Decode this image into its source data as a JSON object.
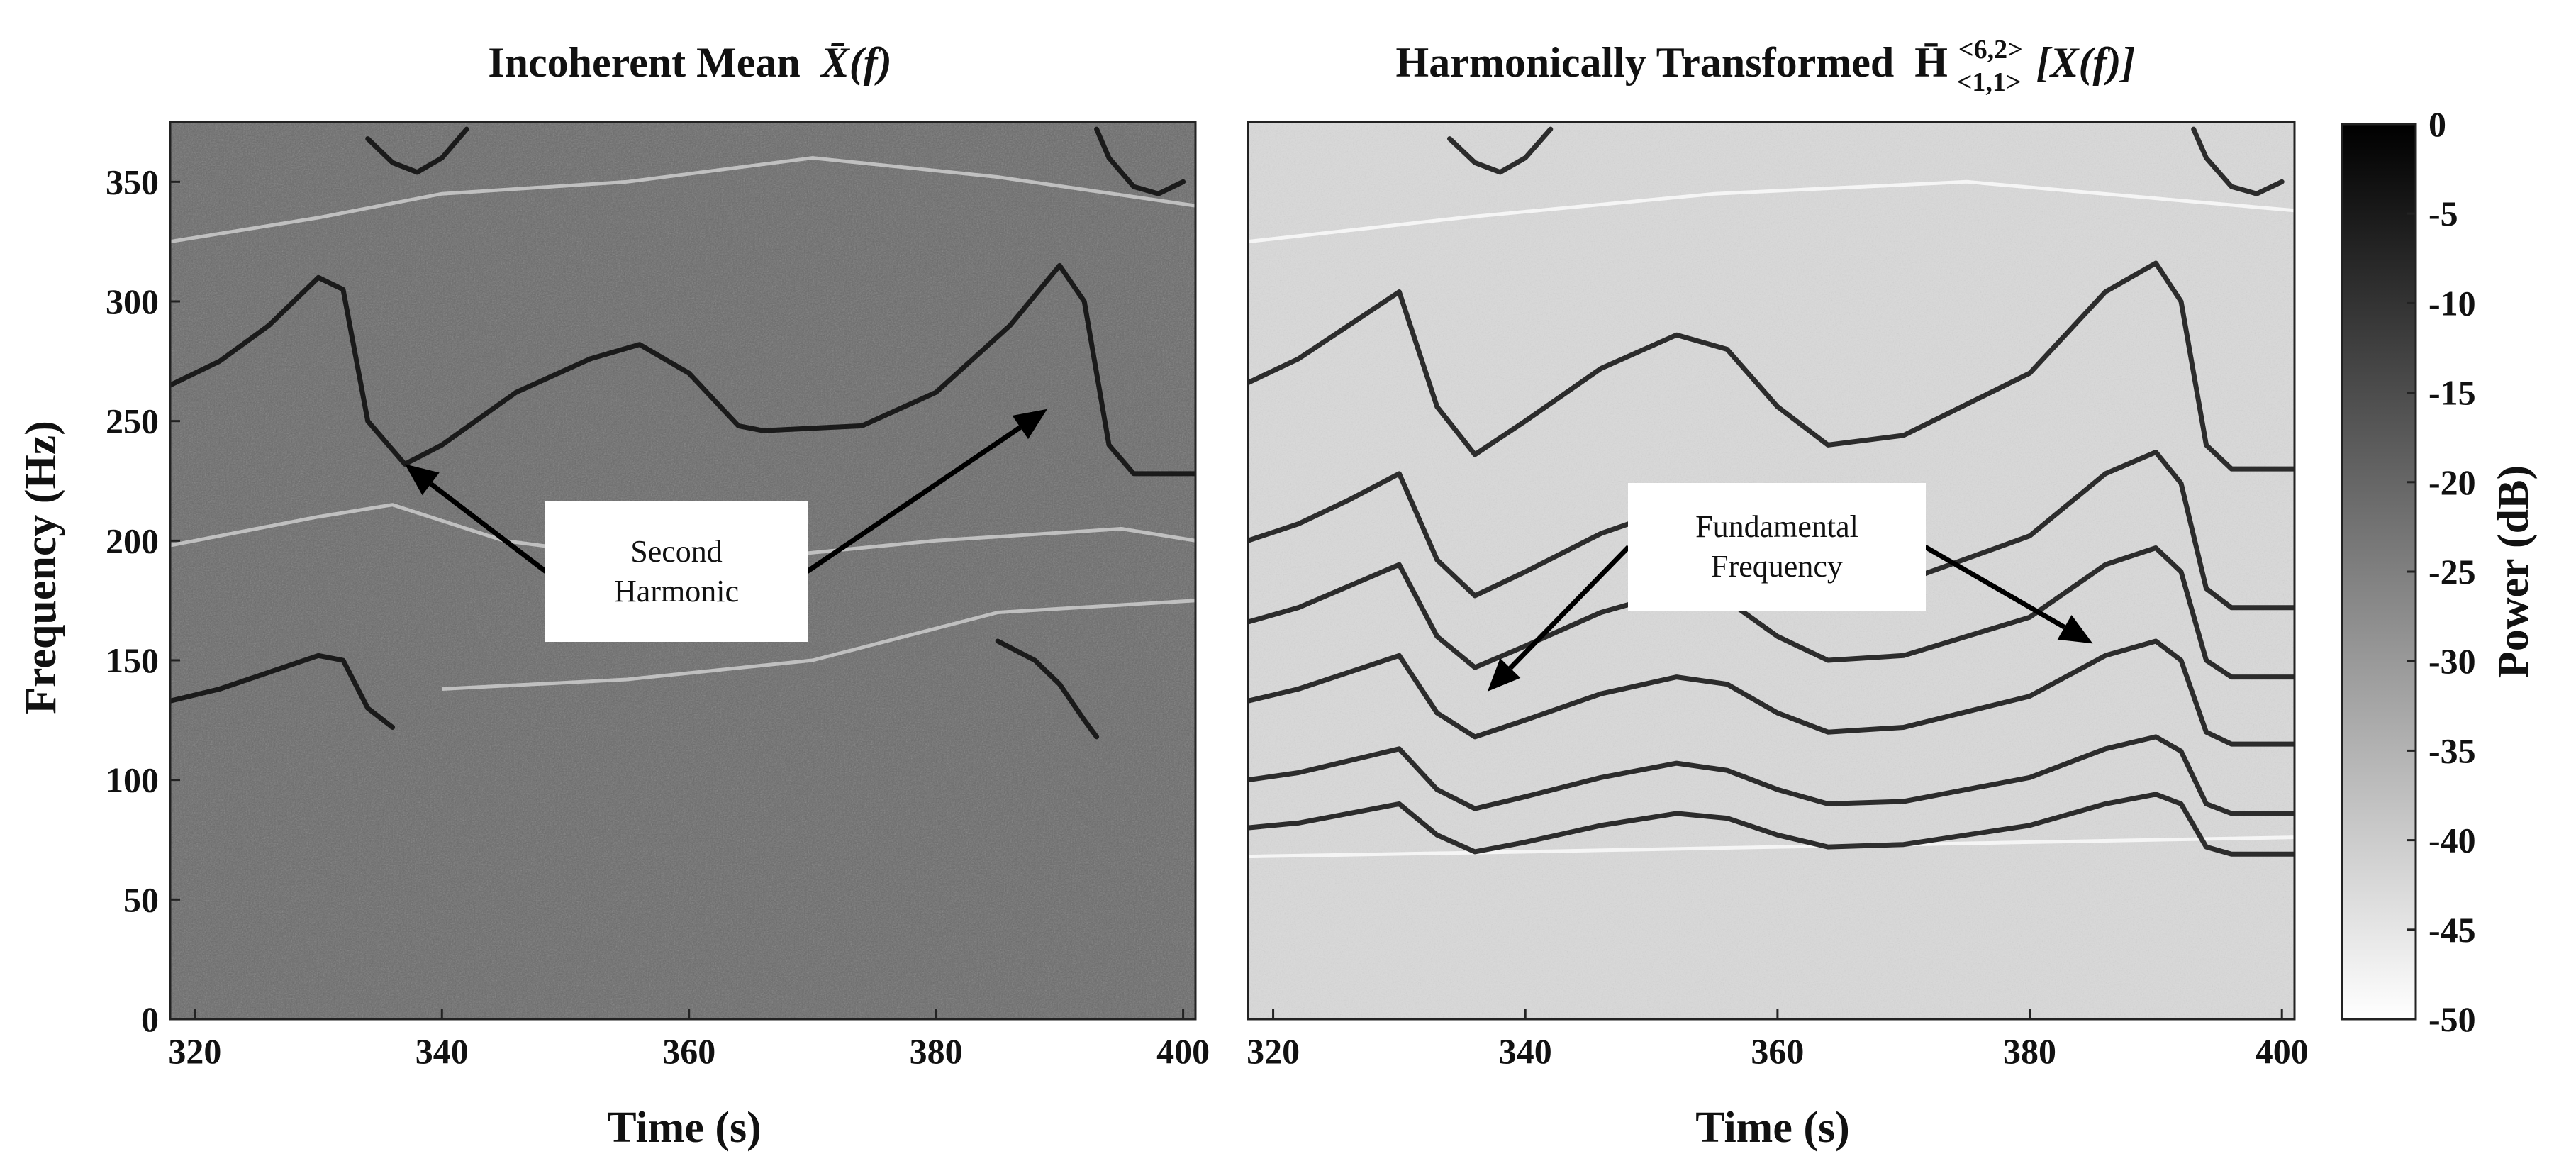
{
  "chart_data": [
    {
      "type": "heatmap",
      "title": "Incoherent Mean",
      "title_math": "X̄(f)",
      "xlabel": "Time (s)",
      "ylabel": "Frequency (Hz)",
      "xlim": [
        318,
        401
      ],
      "ylim": [
        0,
        375
      ],
      "xticks": [
        "320",
        "340",
        "360",
        "380",
        "400"
      ],
      "xtick_values": [
        320,
        340,
        360,
        380,
        400
      ],
      "yticks": [
        "0",
        "50",
        "100",
        "150",
        "200",
        "250",
        "300",
        "350"
      ],
      "ytick_values": [
        0,
        50,
        100,
        150,
        200,
        250,
        300,
        350
      ],
      "background": "#6a6a6a",
      "contours": [
        {
          "x": [
            318,
            322,
            326,
            330,
            332,
            334,
            337,
            340,
            346,
            352,
            356,
            360,
            364,
            366,
            370,
            374,
            380,
            386,
            390,
            392,
            394,
            396,
            401
          ],
          "y": [
            265,
            275,
            290,
            310,
            305,
            250,
            232,
            240,
            262,
            276,
            282,
            270,
            248,
            246,
            247,
            248,
            262,
            290,
            315,
            300,
            240,
            228,
            228
          ]
        },
        {
          "x": [
            318,
            322,
            326,
            330,
            332,
            334,
            336
          ],
          "y": [
            133,
            138,
            145,
            152,
            150,
            130,
            122
          ]
        },
        {
          "x": [
            385,
            388,
            390,
            392,
            393
          ],
          "y": [
            158,
            150,
            140,
            125,
            118
          ]
        },
        {
          "x": [
            334,
            336,
            338,
            340,
            342
          ],
          "y": [
            368,
            358,
            354,
            360,
            372
          ]
        },
        {
          "x": [
            393,
            394,
            396,
            398,
            400
          ],
          "y": [
            372,
            360,
            348,
            345,
            350
          ]
        }
      ],
      "light_contours": [
        {
          "x": [
            318,
            330,
            340,
            355,
            370,
            385,
            401
          ],
          "y": [
            325,
            335,
            345,
            350,
            360,
            352,
            340
          ]
        },
        {
          "x": [
            318,
            330,
            336,
            345,
            360,
            380,
            395,
            401
          ],
          "y": [
            198,
            210,
            215,
            200,
            190,
            200,
            205,
            200
          ]
        },
        {
          "x": [
            340,
            355,
            370,
            385,
            401
          ],
          "y": [
            138,
            142,
            150,
            170,
            175
          ]
        }
      ],
      "annotations": [
        {
          "lines": [
            "Second",
            "Harmonic"
          ],
          "targets": [
            {
              "x": 337,
              "y": 232
            },
            {
              "x": 389,
              "y": 255
            }
          ]
        }
      ]
    },
    {
      "type": "heatmap",
      "title": "Harmonically Transformed",
      "title_math": "H̄",
      "title_superscript": "<6,2>",
      "title_subscript": "<1,1>",
      "title_suffix": "[X(f)]",
      "xlabel": "Time (s)",
      "xlim": [
        318,
        401
      ],
      "ylim": [
        0,
        375
      ],
      "xticks": [
        "320",
        "340",
        "360",
        "380",
        "400"
      ],
      "xtick_values": [
        320,
        340,
        360,
        380,
        400
      ],
      "background": "#d9d9d9",
      "contours": [
        {
          "x": [
            318,
            322,
            326,
            330,
            333,
            336,
            340,
            346,
            352,
            356,
            360,
            364,
            370,
            380,
            386,
            390,
            392,
            394,
            396,
            401
          ],
          "y": [
            133,
            138,
            145,
            152,
            128,
            118,
            125,
            136,
            143,
            140,
            128,
            120,
            122,
            135,
            152,
            158,
            150,
            120,
            115,
            115
          ]
        },
        {
          "x": [
            318,
            322,
            326,
            330,
            333,
            336,
            340,
            346,
            352,
            356,
            360,
            364,
            370,
            380,
            386,
            390,
            392,
            394,
            396,
            401
          ],
          "y": [
            200,
            207,
            217,
            228,
            192,
            177,
            187,
            203,
            214,
            209,
            192,
            180,
            183,
            202,
            228,
            237,
            224,
            180,
            172,
            172
          ]
        },
        {
          "x": [
            318,
            322,
            326,
            330,
            333,
            336,
            340,
            346,
            352,
            356,
            360,
            364,
            370,
            380,
            386,
            390,
            392,
            394,
            396,
            401
          ],
          "y": [
            266,
            276,
            290,
            304,
            256,
            236,
            250,
            272,
            286,
            280,
            256,
            240,
            244,
            270,
            304,
            316,
            300,
            240,
            230,
            230
          ]
        },
        {
          "x": [
            318,
            322,
            326,
            330,
            333,
            336,
            340,
            346,
            352,
            356,
            360,
            364,
            370,
            380,
            386,
            390,
            392,
            394,
            396,
            401
          ],
          "y": [
            100,
            103,
            108,
            113,
            96,
            88,
            93,
            101,
            107,
            104,
            96,
            90,
            91,
            101,
            113,
            118,
            112,
            90,
            86,
            86
          ]
        },
        {
          "x": [
            318,
            322,
            326,
            330,
            333,
            336,
            340,
            346,
            352,
            356,
            360,
            364,
            370,
            380,
            386,
            390,
            392,
            394,
            396,
            401
          ],
          "y": [
            80,
            82,
            86,
            90,
            77,
            70,
            74,
            81,
            86,
            84,
            77,
            72,
            73,
            81,
            90,
            94,
            90,
            72,
            69,
            69
          ]
        },
        {
          "x": [
            318,
            322,
            326,
            330,
            333,
            336,
            340,
            346,
            352,
            356,
            360,
            364,
            370,
            380,
            386,
            390,
            392,
            394,
            396,
            401
          ],
          "y": [
            166,
            172,
            181,
            190,
            160,
            147,
            156,
            170,
            179,
            175,
            160,
            150,
            152,
            168,
            190,
            197,
            187,
            150,
            143,
            143
          ]
        },
        {
          "x": [
            334,
            336,
            338,
            340,
            342
          ],
          "y": [
            368,
            358,
            354,
            360,
            372
          ]
        },
        {
          "x": [
            393,
            394,
            396,
            398,
            400
          ],
          "y": [
            372,
            360,
            348,
            345,
            350
          ]
        }
      ],
      "light_contours": [
        {
          "x": [
            318,
            340,
            360,
            380,
            401
          ],
          "y": [
            68,
            70,
            72,
            74,
            76
          ]
        },
        {
          "x": [
            318,
            335,
            355,
            375,
            401
          ],
          "y": [
            325,
            335,
            345,
            350,
            338
          ]
        }
      ],
      "annotations": [
        {
          "lines": [
            "Fundamental",
            "Frequency"
          ],
          "targets": [
            {
              "x": 337,
              "y": 137
            },
            {
              "x": 385,
              "y": 157
            }
          ]
        }
      ]
    }
  ],
  "colorbar": {
    "label": "Power (dB)",
    "ticks": [
      "0",
      "-5",
      "-10",
      "-15",
      "-20",
      "-25",
      "-30",
      "-35",
      "-40",
      "-45",
      "-50"
    ],
    "tick_values": [
      0,
      -5,
      -10,
      -15,
      -20,
      -25,
      -30,
      -35,
      -40,
      -45,
      -50
    ],
    "range": [
      -50,
      0
    ],
    "color_high": "#000000",
    "color_low": "#ffffff"
  }
}
